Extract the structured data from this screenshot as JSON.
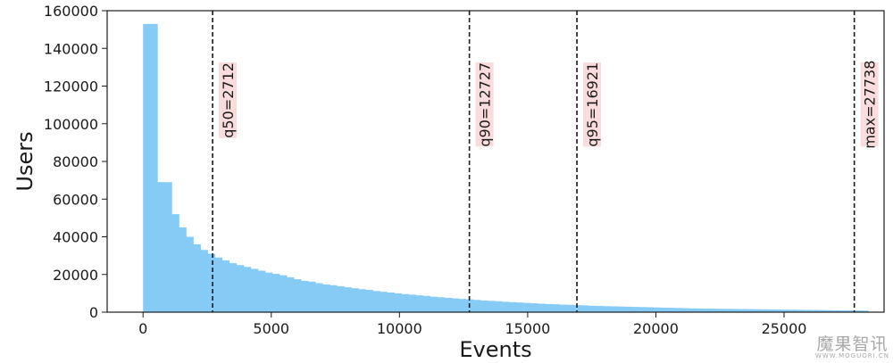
{
  "chart_data": {
    "type": "bar",
    "title": "",
    "xlabel": "Events",
    "ylabel": "Users",
    "xlim": [
      -1400,
      28900
    ],
    "ylim": [
      0,
      160000
    ],
    "xticks": [
      0,
      5000,
      10000,
      15000,
      20000,
      25000
    ],
    "yticks": [
      0,
      20000,
      40000,
      60000,
      80000,
      100000,
      120000,
      140000,
      160000
    ],
    "grid": false,
    "bar_color": "#86cbf6",
    "bin_width": 280,
    "bins_start": 0,
    "values": [
      153000,
      153000,
      69000,
      69000,
      52000,
      45000,
      40000,
      36000,
      33000,
      31000,
      29000,
      27500,
      26000,
      25000,
      24000,
      23000,
      22000,
      21000,
      20300,
      19600,
      18500,
      17500,
      16600,
      16200,
      15400,
      14700,
      14300,
      13800,
      13200,
      12700,
      12200,
      11800,
      11200,
      10800,
      10400,
      10000,
      9600,
      9300,
      8900,
      8600,
      8200,
      7900,
      7600,
      7300,
      7000,
      6800,
      6500,
      6200,
      6000,
      5800,
      5500,
      5300,
      5100,
      4900,
      4700,
      4500,
      4300,
      4200,
      4000,
      3900,
      3700,
      3600,
      3400,
      3300,
      3200,
      3100,
      3000,
      2900,
      2800,
      2700,
      2600,
      2500,
      2400,
      2300,
      2200,
      2100,
      2000,
      1950,
      1900,
      1850,
      1800,
      1750,
      1700,
      1650,
      1600,
      1550,
      1500,
      1450,
      1400,
      1350,
      1300,
      1250,
      1200,
      1150,
      1100,
      1050,
      1000,
      960,
      920,
      880,
      840
    ],
    "annotations": [
      {
        "label": "q50=2712",
        "x": 2712
      },
      {
        "label": "q90=12727",
        "x": 12727
      },
      {
        "label": "q95=16921",
        "x": 16921
      },
      {
        "label": "max=27738",
        "x": 27738
      }
    ],
    "annotation_box_color": "#fadcdc"
  },
  "watermark": {
    "main": "魔果智讯",
    "sub": "WWW.MOGUORI.CN"
  }
}
